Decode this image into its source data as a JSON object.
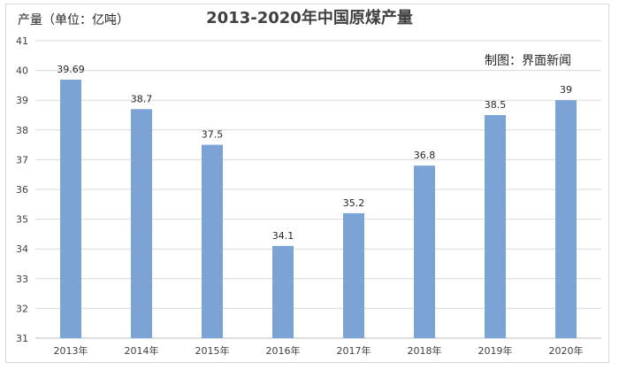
{
  "chart_data": {
    "type": "bar",
    "title": "2013-2020年中国原煤产量",
    "ylabel": "产量（单位：亿吨）",
    "xlabel": "",
    "annotation": "制图：界面新闻",
    "categories": [
      "2013年",
      "2014年",
      "2015年",
      "2016年",
      "2017年",
      "2018年",
      "2019年",
      "2020年"
    ],
    "values": [
      39.69,
      38.7,
      37.5,
      34.1,
      35.2,
      36.8,
      38.5,
      39
    ],
    "data_labels": [
      "39.69",
      "38.7",
      "37.5",
      "34.1",
      "35.2",
      "36.8",
      "38.5",
      "39"
    ],
    "ylim": [
      31,
      41
    ],
    "yticks": [
      31,
      32,
      33,
      34,
      35,
      36,
      37,
      38,
      39,
      40,
      41
    ],
    "grid": true,
    "bar_color": "#7BA3D6",
    "grid_color": "#d9d9d9"
  }
}
